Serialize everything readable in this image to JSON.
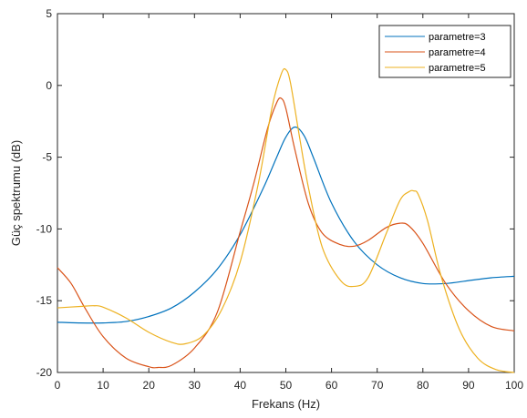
{
  "chart_data": {
    "type": "line",
    "xlabel": "Frekans (Hz)",
    "ylabel": "Güç spektrumu (dB)",
    "xlim": [
      0,
      100
    ],
    "ylim": [
      -20,
      5
    ],
    "xticks": [
      0,
      10,
      20,
      30,
      40,
      50,
      60,
      70,
      80,
      90,
      100
    ],
    "yticks": [
      5,
      0,
      -5,
      -10,
      -15,
      -20
    ],
    "grid": false,
    "legend_position": "top-right",
    "series": [
      {
        "name": "parametre=3",
        "color": "#0072BD",
        "x": [
          0,
          5,
          10,
          15,
          20,
          25,
          30,
          35,
          40,
          45,
          48,
          50,
          52,
          54,
          56,
          60,
          65,
          70,
          75,
          80,
          85,
          90,
          95,
          100
        ],
        "y": [
          -16.5,
          -16.55,
          -16.55,
          -16.45,
          -16.1,
          -15.5,
          -14.4,
          -12.8,
          -10.4,
          -7.2,
          -5.0,
          -3.6,
          -2.9,
          -3.5,
          -5.0,
          -8.2,
          -10.9,
          -12.5,
          -13.4,
          -13.8,
          -13.8,
          -13.6,
          -13.4,
          -13.3
        ]
      },
      {
        "name": "parametre=4",
        "color": "#D95319",
        "x": [
          0,
          3,
          6,
          10,
          15,
          20,
          22,
          25,
          30,
          35,
          40,
          43,
          46,
          48,
          49,
          50,
          52,
          55,
          58,
          62,
          65,
          68,
          72,
          75,
          77,
          80,
          85,
          90,
          95,
          100
        ],
        "y": [
          -12.7,
          -13.8,
          -15.5,
          -17.5,
          -19.0,
          -19.6,
          -19.65,
          -19.5,
          -18.3,
          -15.8,
          -10.2,
          -6.8,
          -3.0,
          -1.2,
          -0.9,
          -1.6,
          -4.5,
          -8.3,
          -10.3,
          -11.1,
          -11.2,
          -10.8,
          -9.9,
          -9.6,
          -9.8,
          -11.0,
          -13.8,
          -15.7,
          -16.8,
          -17.1
        ]
      },
      {
        "name": "parametre=5",
        "color": "#EDB120",
        "x": [
          0,
          5,
          8,
          10,
          15,
          20,
          25,
          28,
          32,
          36,
          40,
          44,
          47,
          49,
          50,
          51,
          53,
          55,
          58,
          62,
          65,
          68,
          72,
          75,
          77,
          78,
          79,
          81,
          84,
          88,
          92,
          96,
          100
        ],
        "y": [
          -15.5,
          -15.4,
          -15.35,
          -15.45,
          -16.2,
          -17.2,
          -17.9,
          -18.0,
          -17.4,
          -15.6,
          -12.3,
          -6.8,
          -1.5,
          0.8,
          1.1,
          0.2,
          -3.6,
          -7.2,
          -11.3,
          -13.6,
          -14.0,
          -13.4,
          -10.3,
          -8.0,
          -7.4,
          -7.35,
          -7.6,
          -9.4,
          -13.3,
          -17.0,
          -19.0,
          -19.8,
          -20.0
        ]
      }
    ]
  }
}
